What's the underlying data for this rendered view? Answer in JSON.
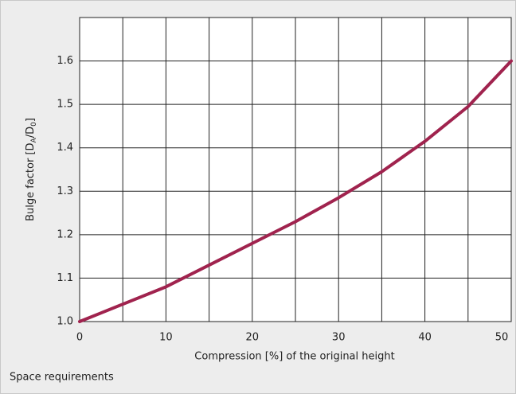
{
  "chart_data": {
    "type": "line",
    "xlabel": "Compression [%] of the original height",
    "ylabel_parts": [
      "Bulge factor [D",
      "A",
      "/D",
      "0",
      "]"
    ],
    "caption": "Space requirements",
    "x": [
      0,
      5,
      10,
      15,
      20,
      25,
      30,
      35,
      40,
      45,
      50
    ],
    "series": [
      {
        "name": "Bulge factor",
        "color": "#a0234e",
        "values": [
          1.0,
          1.04,
          1.08,
          1.13,
          1.18,
          1.23,
          1.285,
          1.345,
          1.415,
          1.495,
          1.6
        ]
      }
    ],
    "xlim": [
      0,
      50
    ],
    "ylim": [
      1.0,
      1.7
    ],
    "xticks": [
      0,
      10,
      20,
      30,
      40,
      50
    ],
    "xgrid": [
      0,
      5,
      10,
      15,
      20,
      25,
      30,
      35,
      40,
      45,
      50
    ],
    "yticks": [
      {
        "value": 1.0,
        "label": "1.0"
      },
      1.1,
      1.2,
      1.3,
      1.4,
      1.5,
      1.6
    ],
    "ygrid": [
      1.0,
      1.1,
      1.2,
      1.3,
      1.4,
      1.5,
      1.6,
      1.7
    ],
    "grid": true
  }
}
